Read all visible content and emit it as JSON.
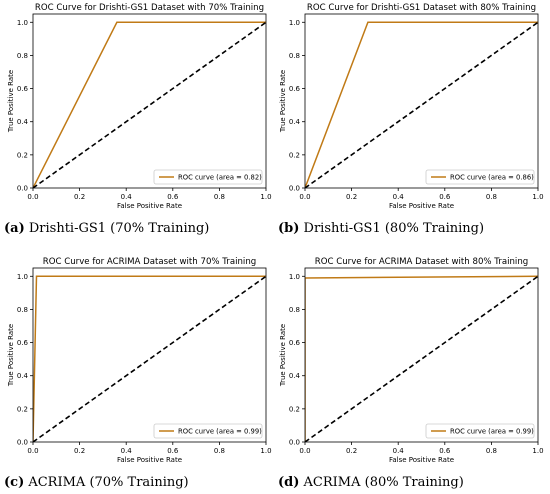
{
  "chart_data": [
    {
      "type": "line",
      "title": "ROC Curve for Drishti-GS1 Dataset with 70% Training",
      "xlabel": "False Positive Rate",
      "ylabel": "True Positive Rate",
      "xlim": [
        0,
        1
      ],
      "ylim": [
        0,
        1.05
      ],
      "xticks": [
        "0.0",
        "0.2",
        "0.4",
        "0.6",
        "0.8",
        "1.0"
      ],
      "yticks": [
        "0.0",
        "0.2",
        "0.4",
        "0.6",
        "0.8",
        "1.0"
      ],
      "series": [
        {
          "name": "ROC curve (area = 0.82)",
          "color": "#c07a16",
          "style": "solid",
          "x": [
            0,
            0.36,
            1
          ],
          "y": [
            0,
            1,
            1
          ]
        },
        {
          "color": "#000000",
          "style": "dashed",
          "x": [
            0,
            1
          ],
          "y": [
            0,
            1
          ]
        }
      ],
      "legend_position": "lower-right",
      "grid": false
    },
    {
      "type": "line",
      "title": "ROC Curve for Drishti-GS1 Dataset with 80% Training",
      "xlabel": "False Positive Rate",
      "ylabel": "True Positive Rate",
      "xlim": [
        0,
        1
      ],
      "ylim": [
        0,
        1.05
      ],
      "xticks": [
        "0.0",
        "0.2",
        "0.4",
        "0.6",
        "0.8",
        "1.0"
      ],
      "yticks": [
        "0.0",
        "0.2",
        "0.4",
        "0.6",
        "0.8",
        "1.0"
      ],
      "series": [
        {
          "name": "ROC curve (area = 0.86)",
          "color": "#c07a16",
          "style": "solid",
          "x": [
            0,
            0.27,
            1
          ],
          "y": [
            0,
            1,
            1
          ]
        },
        {
          "color": "#000000",
          "style": "dashed",
          "x": [
            0,
            1
          ],
          "y": [
            0,
            1
          ]
        }
      ],
      "legend_position": "lower-right",
      "grid": false
    },
    {
      "type": "line",
      "title": "ROC Curve for ACRIMA Dataset with 70% Training",
      "xlabel": "False Positive Rate",
      "ylabel": "True Positive Rate",
      "xlim": [
        0,
        1
      ],
      "ylim": [
        0,
        1.05
      ],
      "xticks": [
        "0.0",
        "0.2",
        "0.4",
        "0.6",
        "0.8",
        "1.0"
      ],
      "yticks": [
        "0.0",
        "0.2",
        "0.4",
        "0.6",
        "0.8",
        "1.0"
      ],
      "series": [
        {
          "name": "ROC curve (area = 0.99)",
          "color": "#c07a16",
          "style": "solid",
          "x": [
            0,
            0.015,
            1
          ],
          "y": [
            0,
            1,
            1
          ]
        },
        {
          "color": "#000000",
          "style": "dashed",
          "x": [
            0,
            1
          ],
          "y": [
            0,
            1
          ]
        }
      ],
      "legend_position": "lower-right",
      "grid": false
    },
    {
      "type": "line",
      "title": "ROC Curve for ACRIMA Dataset with 80% Training",
      "xlabel": "False Positive Rate",
      "ylabel": "True Positive Rate",
      "xlim": [
        0,
        1
      ],
      "ylim": [
        0,
        1.05
      ],
      "xticks": [
        "0.0",
        "0.2",
        "0.4",
        "0.6",
        "0.8",
        "1.0"
      ],
      "yticks": [
        "0.0",
        "0.2",
        "0.4",
        "0.6",
        "0.8",
        "1.0"
      ],
      "series": [
        {
          "name": "ROC curve (area = 0.99)",
          "color": "#c07a16",
          "style": "solid",
          "x": [
            0,
            0,
            1
          ],
          "y": [
            0,
            0.99,
            1
          ]
        },
        {
          "color": "#000000",
          "style": "dashed",
          "x": [
            0,
            1
          ],
          "y": [
            0,
            1
          ]
        }
      ],
      "legend_position": "lower-right",
      "grid": false
    }
  ],
  "captions": [
    {
      "tag": "(a)",
      "text": " Drishti-GS1 (70% Training)"
    },
    {
      "tag": "(b)",
      "text": " Drishti-GS1 (80% Training)"
    },
    {
      "tag": "(c)",
      "text": " ACRIMA (70% Training)"
    },
    {
      "tag": "(d)",
      "text": " ACRIMA (80% Training)"
    }
  ]
}
